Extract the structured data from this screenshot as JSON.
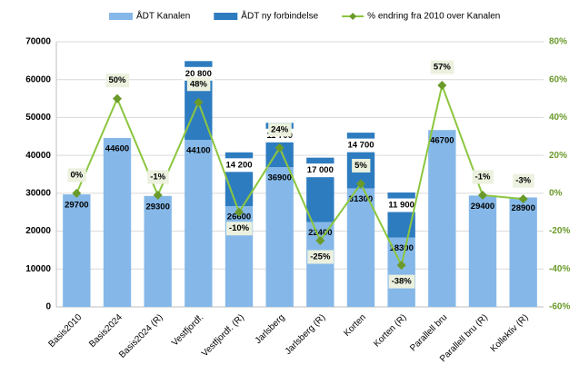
{
  "chart_data": {
    "type": "bar",
    "stacked": true,
    "categories": [
      "Basis2010",
      "Basis2024",
      "Basis2024 (R)",
      "Vestfjordf.",
      "Vestfjordf. (R)",
      "Jarlsberg",
      "Jarlsberg (R)",
      "Korten",
      "Korten (R)",
      "Parallell bru",
      "Parallell bru (R)",
      "Kollektiv (R)"
    ],
    "series": [
      {
        "name": "ÅDT Kanalen",
        "type": "bar",
        "color": "#85b8e8",
        "values": [
          29700,
          44600,
          29300,
          44100,
          26600,
          36900,
          22400,
          31300,
          18300,
          46700,
          29400,
          28900
        ]
      },
      {
        "name": "ÅDT ny forbindelse",
        "type": "bar",
        "color": "#2e7cc0",
        "values": [
          null,
          null,
          null,
          20800,
          14200,
          11700,
          17000,
          14700,
          11900,
          null,
          null,
          null
        ],
        "value_labels": [
          null,
          null,
          null,
          "20 800",
          "14 200",
          "11 700",
          "17 000",
          "14 700",
          "11 900",
          null,
          null,
          null
        ]
      },
      {
        "name": "% endring fra 2010 over Kanalen",
        "type": "line",
        "axis": "y2",
        "color": "#8cc63f",
        "marker_color": "#6a9a2a",
        "values": [
          0,
          50,
          -1,
          48,
          -10,
          24,
          -25,
          5,
          -38,
          57,
          -1,
          -3
        ],
        "value_labels": [
          "0%",
          "50%",
          "-1%",
          "48%",
          "-10%",
          "24%",
          "-25%",
          "5%",
          "-38%",
          "57%",
          "-1%",
          "-3%"
        ]
      }
    ],
    "ylim": [
      0,
      70000
    ],
    "yticks": [
      0,
      10000,
      20000,
      30000,
      40000,
      50000,
      60000,
      70000
    ],
    "y2lim": [
      -60,
      80
    ],
    "y2ticks": [
      {
        "value": -60,
        "label": "-60%"
      },
      {
        "value": -40,
        "label": "-40%"
      },
      {
        "value": -20,
        "label": "-20%"
      },
      {
        "value": 0,
        "label": "0%"
      },
      {
        "value": 20,
        "label": "20%"
      },
      {
        "value": 40,
        "label": "40%"
      },
      {
        "value": 60,
        "label": "60%"
      },
      {
        "value": 80,
        "label": "80%"
      }
    ],
    "grid": true,
    "legend": "top"
  }
}
